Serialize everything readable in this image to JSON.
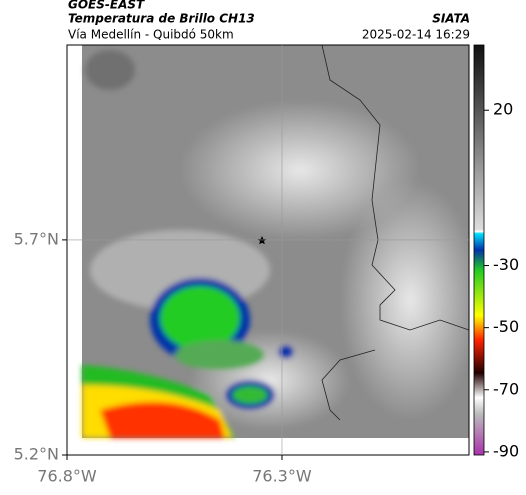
{
  "header": {
    "product": "GOES-EAST",
    "title": "Temperatura de Brillo CH13",
    "subtitle": "Vía Medellín - Quibdó 50km",
    "source": "SIATA",
    "datetime": "2025-02-14 16:29"
  },
  "map": {
    "xlim": [
      -76.8,
      -75.865
    ],
    "ylim": [
      5.2,
      6.153
    ],
    "xticks": [
      {
        "value": -76.8,
        "label": "76.8°W"
      },
      {
        "value": -76.3,
        "label": "76.3°W"
      }
    ],
    "yticks": [
      {
        "value": 5.2,
        "label": "5.2°N"
      },
      {
        "value": 5.7,
        "label": "5.7°N"
      }
    ],
    "grid": true
  },
  "colorbar": {
    "range": [
      41,
      -91
    ],
    "ticks": [
      20,
      -30,
      -50,
      -70,
      -90
    ]
  }
}
